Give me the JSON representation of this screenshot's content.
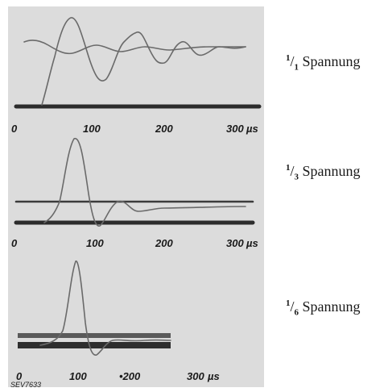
{
  "panels": [
    {
      "ratio_num": "1",
      "ratio_den": "1",
      "label_text": "Spannung",
      "ticks": [
        "0",
        "100",
        "200",
        "300"
      ],
      "unit": "µs"
    },
    {
      "ratio_num": "1",
      "ratio_den": "3",
      "label_text": "Spannung",
      "ticks": [
        "0",
        "100",
        "200",
        "300"
      ],
      "unit": "µs"
    },
    {
      "ratio_num": "1",
      "ratio_den": "6",
      "label_text": "Spannung",
      "ticks": [
        "0",
        "100",
        "•200",
        "300"
      ],
      "unit": "µs"
    }
  ],
  "stamp": "SEV7633"
}
